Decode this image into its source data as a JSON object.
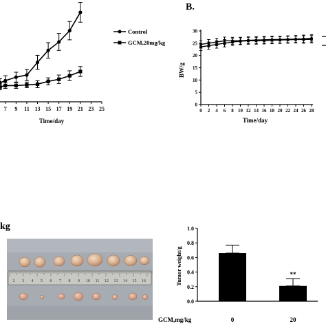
{
  "panel_b_label": "B.",
  "kg_fragment": "kg",
  "chart_data": [
    {
      "type": "line",
      "title": "",
      "xlabel": "Time/day",
      "ylabel": "",
      "x_ticks": [
        "7",
        "9",
        "11",
        "13",
        "15",
        "17",
        "19",
        "21",
        "23",
        "25"
      ],
      "xlim": [
        6,
        25
      ],
      "ylim": [
        0,
        1250
      ],
      "legend_position": "top-right",
      "series": [
        {
          "name": "Control",
          "marker": "circle",
          "x": [
            6,
            7,
            9,
            11,
            13,
            15,
            17,
            19,
            21
          ],
          "y": [
            270,
            300,
            350,
            380,
            560,
            730,
            850,
            1010,
            1270
          ],
          "err": [
            60,
            70,
            70,
            80,
            100,
            110,
            120,
            130,
            140
          ]
        },
        {
          "name": "GCM,20mg/kg",
          "marker": "square",
          "x": [
            6,
            7,
            9,
            11,
            13,
            15,
            17,
            19,
            21
          ],
          "y": [
            210,
            230,
            230,
            240,
            250,
            290,
            320,
            370,
            430
          ],
          "err": [
            40,
            40,
            40,
            40,
            50,
            50,
            60,
            70,
            70
          ]
        }
      ]
    },
    {
      "type": "line",
      "title": "",
      "xlabel": "Time/day",
      "ylabel": "BW/g",
      "x_ticks": [
        "0",
        "2",
        "4",
        "6",
        "8",
        "10",
        "12",
        "14",
        "16",
        "18",
        "20",
        "22",
        "24",
        "26",
        "28"
      ],
      "y_ticks": [
        "0",
        "5",
        "10",
        "15",
        "20",
        "25",
        "30"
      ],
      "xlim": [
        0,
        28
      ],
      "ylim": [
        0,
        30
      ],
      "series": [
        {
          "name": "",
          "marker": "circle",
          "x": [
            0,
            2,
            4,
            6,
            8,
            10,
            12,
            14,
            16,
            18,
            20,
            22,
            24,
            26,
            28
          ],
          "y": [
            24.5,
            25,
            25.5,
            26,
            26,
            26,
            26.2,
            26.3,
            26.4,
            26.5,
            26.5,
            26.6,
            26.7,
            26.8,
            27
          ],
          "err": [
            1.5,
            1.5,
            1.5,
            1.5,
            1.4,
            1.4,
            1.4,
            1.4,
            1.4,
            1.4,
            1.4,
            1.4,
            1.4,
            1.5,
            1.5
          ]
        },
        {
          "name": "",
          "marker": "square",
          "x": [
            0,
            2,
            4,
            6,
            8,
            10,
            12,
            14,
            16,
            18,
            20,
            22,
            24,
            26,
            28
          ],
          "y": [
            23.5,
            24,
            24.5,
            25,
            25.5,
            25.8,
            26,
            26,
            26.1,
            26.2,
            26.3,
            26.4,
            26.5,
            26.5,
            26.6
          ],
          "err": [
            1.5,
            1.5,
            1.5,
            1.5,
            1.4,
            1.4,
            1.4,
            1.4,
            1.4,
            1.4,
            1.4,
            1.4,
            1.4,
            1.5,
            1.5
          ]
        }
      ]
    },
    {
      "type": "bar",
      "title": "",
      "xlabel": "GCM,mg/kg",
      "ylabel": "Tumor weight/g",
      "categories": [
        "0",
        "20"
      ],
      "values": [
        0.66,
        0.21
      ],
      "errors": [
        0.11,
        0.1
      ],
      "annotations": [
        "",
        "**"
      ],
      "y_ticks": [
        "0.0",
        "0.2",
        "0.4",
        "0.6",
        "0.8",
        "1.0"
      ],
      "ylim": [
        0,
        1.0
      ]
    }
  ],
  "photo": {
    "ruler_numbers": [
      "2",
      "3",
      "4",
      "5",
      "6",
      "7",
      "8",
      "9",
      "10",
      "11",
      "12",
      "13",
      "14",
      "15",
      "16"
    ]
  }
}
